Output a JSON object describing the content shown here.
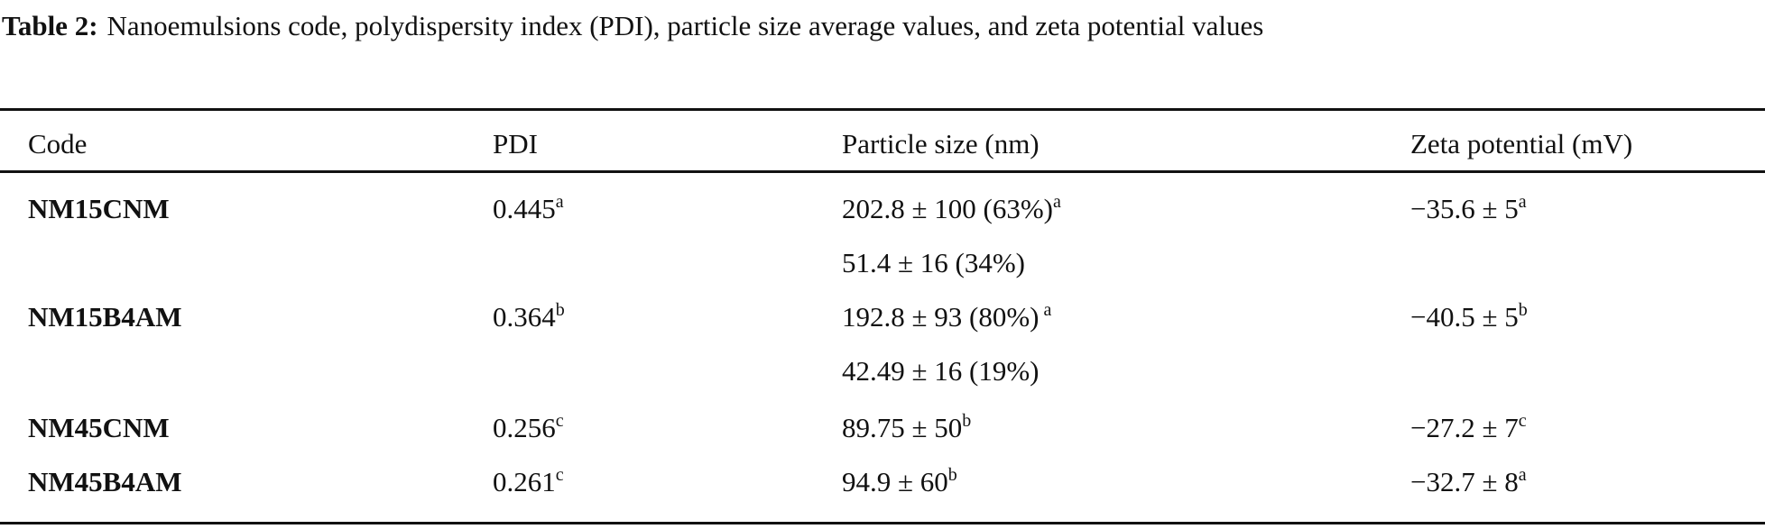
{
  "caption": {
    "label": "Table 2:",
    "text": "Nanoemulsions code, polydispersity index (PDI), particle size average values, and zeta potential values"
  },
  "headers": [
    "Code",
    "PDI",
    "Particle size (nm)",
    "Zeta potential (mV)"
  ],
  "rows": [
    {
      "code": "NM15CNM",
      "pdi": "0.445",
      "pdi_sup": "a",
      "size": "202.8 ± 100 (63%)",
      "size_sup": "a",
      "zeta": "−35.6 ± 5",
      "zeta_sup": "a"
    },
    {
      "code": "",
      "pdi": "",
      "pdi_sup": "",
      "size": "51.4 ± 16 (34%)",
      "size_sup": "",
      "zeta": "",
      "zeta_sup": ""
    },
    {
      "code": "NM15B4AM",
      "pdi": "0.364",
      "pdi_sup": "b",
      "size": "192.8 ± 93 (80%)",
      "size_sup": " a",
      "zeta": "−40.5 ± 5",
      "zeta_sup": "b"
    },
    {
      "code": "",
      "pdi": "",
      "pdi_sup": "",
      "size": "42.49 ± 16 (19%)",
      "size_sup": "",
      "zeta": "",
      "zeta_sup": ""
    },
    {
      "code": "NM45CNM",
      "pdi": "0.256",
      "pdi_sup": "c",
      "size": "89.75 ± 50",
      "size_sup": "b",
      "zeta": "−27.2 ± 7",
      "zeta_sup": "c"
    },
    {
      "code": "NM45B4AM",
      "pdi": "0.261",
      "pdi_sup": "c",
      "size": "94.9 ± 60",
      "size_sup": "b",
      "zeta": "−32.7 ± 8",
      "zeta_sup": "a"
    }
  ]
}
